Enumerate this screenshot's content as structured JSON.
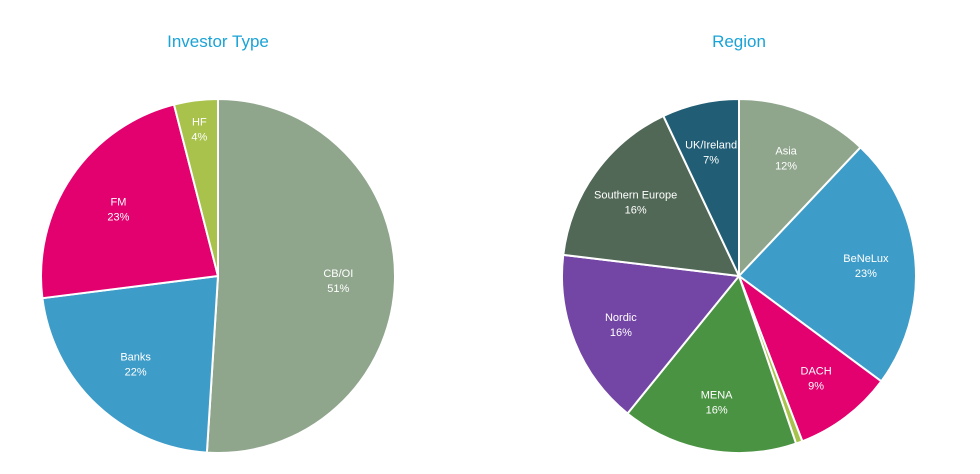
{
  "chart_data": [
    {
      "type": "pie",
      "title": "Investor Type",
      "start_angle_deg": 0,
      "direction": "clockwise",
      "slices": [
        {
          "label": "CB/OI",
          "value": 51,
          "value_label": "51%",
          "color": "#8FA68D"
        },
        {
          "label": "Banks",
          "value": 22,
          "value_label": "22%",
          "color": "#3E9CC8"
        },
        {
          "label": "FM",
          "value": 23,
          "value_label": "23%",
          "color": "#E3006F"
        },
        {
          "label": "HF",
          "value": 4,
          "value_label": "4%",
          "color": "#A8C24B"
        }
      ]
    },
    {
      "type": "pie",
      "title": "Region",
      "start_angle_deg": 0,
      "direction": "clockwise",
      "slices": [
        {
          "label": "Asia",
          "value": 12,
          "value_label": "12%",
          "color": "#8FA68D"
        },
        {
          "label": "BeNeLux",
          "value": 23,
          "value_label": "23%",
          "color": "#3E9CC8"
        },
        {
          "label": "DACH",
          "value": 9,
          "value_label": "9%",
          "color": "#E3006F"
        },
        {
          "label": "",
          "value": 0.6,
          "value_label": "",
          "color": "#A8C24B"
        },
        {
          "label": "MENA",
          "value": 16,
          "value_label": "16%",
          "color": "#4A9342"
        },
        {
          "label": "Nordic",
          "value": 16,
          "value_label": "16%",
          "color": "#7345A5"
        },
        {
          "label": "Southern Europe",
          "value": 16,
          "value_label": "16%",
          "color": "#516856"
        },
        {
          "label": "UK/Ireland",
          "value": 7,
          "value_label": "7%",
          "color": "#215E75"
        }
      ]
    }
  ]
}
